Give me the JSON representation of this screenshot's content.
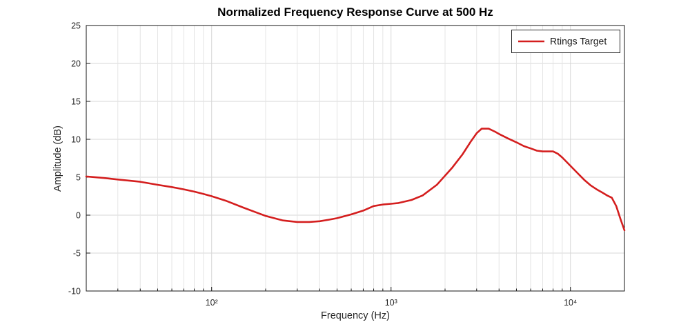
{
  "chart_data": {
    "type": "line",
    "title": "Normalized Frequency Response Curve at 500 Hz",
    "xlabel": "Frequency (Hz)",
    "ylabel": "Amplitude (dB)",
    "x_scale": "log",
    "xlim": [
      20,
      20000
    ],
    "ylim": [
      -10,
      25
    ],
    "y_ticks": [
      -10,
      -5,
      0,
      5,
      10,
      15,
      20,
      25
    ],
    "x_major_ticks": [
      100,
      1000,
      10000
    ],
    "x_major_tick_labels": [
      "10²",
      "10³",
      "10⁴"
    ],
    "grid": true,
    "colors": {
      "line": "#d41e1e",
      "grid_major": "#d7d7d7",
      "grid_minor": "#e4e4e4",
      "axis": "#141414",
      "text": "#262626"
    },
    "legend": {
      "position": "top-right",
      "label": "Rtings Target"
    },
    "series": [
      {
        "name": "Rtings Target",
        "color": "#d41e1e",
        "x": [
          20,
          25,
          30,
          40,
          50,
          60,
          70,
          80,
          90,
          100,
          120,
          150,
          180,
          200,
          250,
          300,
          350,
          400,
          450,
          500,
          600,
          700,
          800,
          900,
          1000,
          1100,
          1300,
          1500,
          1800,
          2000,
          2200,
          2500,
          2800,
          3000,
          3200,
          3500,
          3800,
          4000,
          4500,
          5000,
          5500,
          6000,
          6500,
          7000,
          7500,
          8000,
          8500,
          9000,
          10000,
          11000,
          12000,
          13000,
          14000,
          15000,
          16000,
          17000,
          18000,
          19000,
          20000
        ],
        "y": [
          5.1,
          4.9,
          4.7,
          4.4,
          4.0,
          3.7,
          3.4,
          3.1,
          2.8,
          2.5,
          1.9,
          1.0,
          0.3,
          -0.1,
          -0.7,
          -0.9,
          -0.9,
          -0.8,
          -0.6,
          -0.4,
          0.1,
          0.6,
          1.2,
          1.4,
          1.5,
          1.6,
          2.0,
          2.6,
          4.0,
          5.2,
          6.3,
          8.0,
          9.8,
          10.8,
          11.4,
          11.4,
          11.0,
          10.7,
          10.1,
          9.6,
          9.1,
          8.8,
          8.5,
          8.4,
          8.4,
          8.4,
          8.1,
          7.6,
          6.5,
          5.5,
          4.6,
          3.9,
          3.4,
          3.0,
          2.6,
          2.3,
          1.2,
          -0.5,
          -2.0
        ]
      }
    ]
  }
}
